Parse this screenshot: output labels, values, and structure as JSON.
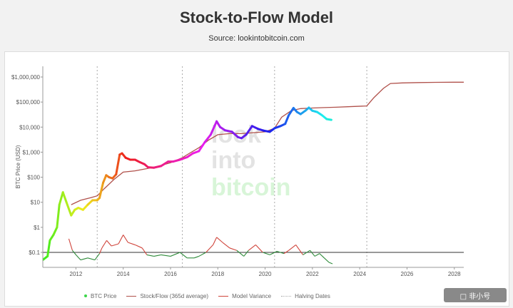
{
  "page": {
    "title": "Stock-to-Flow Model",
    "subtitle": "Source: lookintobitcoin.com"
  },
  "colors": {
    "stock_flow": "#b0514b",
    "variance_red": "#d0453c",
    "variance_green": "#2e8b3a",
    "halving": "#aaaaaa",
    "legend_dot": "#3cd64a",
    "reference_line": "#333333"
  },
  "brand_watermark": {
    "line1": "look",
    "line2": "into",
    "line3": "bitcoin"
  },
  "badge": {
    "text": "□ 非小号"
  },
  "chart_data": {
    "type": "line",
    "title": "Stock-to-Flow Model",
    "ylabel": "BTC Price (USD)",
    "xlabel": "",
    "yscale": "log",
    "ylim": [
      0.05,
      1500000
    ],
    "xlim": [
      2010.6,
      2028.4
    ],
    "y_ticks": [
      {
        "value": 0.1,
        "label": "$0.1"
      },
      {
        "value": 1,
        "label": "$1"
      },
      {
        "value": 10,
        "label": "$10"
      },
      {
        "value": 100,
        "label": "$100"
      },
      {
        "value": 1000,
        "label": "$1,000"
      },
      {
        "value": 10000,
        "label": "$10,000"
      },
      {
        "value": 100000,
        "label": "$100,000"
      },
      {
        "value": 1000000,
        "label": "$1,000,000"
      }
    ],
    "x_ticks": [
      {
        "value": 2012,
        "label": "2012"
      },
      {
        "value": 2014,
        "label": "2014"
      },
      {
        "value": 2016,
        "label": "2016"
      },
      {
        "value": 2018,
        "label": "2018"
      },
      {
        "value": 2020,
        "label": "2020"
      },
      {
        "value": 2022,
        "label": "2022"
      },
      {
        "value": 2024,
        "label": "2024"
      },
      {
        "value": 2026,
        "label": "2026"
      },
      {
        "value": 2028,
        "label": "2028"
      }
    ],
    "halving_dates": [
      2012.9,
      2016.5,
      2020.4,
      2024.3
    ],
    "reference_line_value": 0.1,
    "legend": [
      {
        "label": "BTC Price",
        "style": "dot"
      },
      {
        "label": "Stock/Flow (365d average)",
        "style": "line"
      },
      {
        "label": "Model Variance",
        "style": "line"
      },
      {
        "label": "Halving Dates",
        "style": "dotted"
      }
    ],
    "series": [
      {
        "name": "BTC Price",
        "color_mode": "rainbow",
        "x": [
          2010.6,
          2010.8,
          2010.9,
          2011.05,
          2011.2,
          2011.3,
          2011.45,
          2011.6,
          2011.8,
          2011.95,
          2012.1,
          2012.3,
          2012.5,
          2012.7,
          2012.9,
          2013.0,
          2013.15,
          2013.28,
          2013.4,
          2013.55,
          2013.7,
          2013.85,
          2013.95,
          2014.1,
          2014.3,
          2014.5,
          2014.7,
          2014.9,
          2015.05,
          2015.3,
          2015.6,
          2015.9,
          2016.1,
          2016.4,
          2016.7,
          2016.95,
          2017.2,
          2017.45,
          2017.7,
          2017.95,
          2018.1,
          2018.3,
          2018.6,
          2018.85,
          2019.0,
          2019.2,
          2019.45,
          2019.7,
          2019.95,
          2020.2,
          2020.4,
          2020.65,
          2020.85,
          2021.0,
          2021.2,
          2021.35,
          2021.5,
          2021.7,
          2021.85,
          2022.0,
          2022.2,
          2022.4,
          2022.6,
          2022.8
        ],
        "values": [
          0.05,
          0.07,
          0.3,
          0.5,
          1.0,
          8.0,
          25,
          10,
          3,
          5,
          6,
          5,
          8,
          12,
          12,
          15,
          60,
          120,
          100,
          90,
          130,
          800,
          900,
          600,
          500,
          500,
          400,
          330,
          250,
          240,
          280,
          420,
          420,
          500,
          630,
          900,
          1100,
          2500,
          5000,
          17000,
          10000,
          7500,
          6500,
          4000,
          3600,
          5000,
          11000,
          8500,
          7200,
          6500,
          9000,
          11000,
          13500,
          30000,
          58000,
          40000,
          33000,
          45000,
          60000,
          45000,
          40000,
          30000,
          21000,
          19500
        ]
      },
      {
        "name": "Stock/Flow (365d average)",
        "x": [
          2011.8,
          2012.2,
          2012.6,
          2012.9,
          2013.2,
          2013.6,
          2014.0,
          2014.5,
          2015.0,
          2015.5,
          2016.0,
          2016.5,
          2016.8,
          2017.2,
          2017.6,
          2018.0,
          2018.5,
          2019.0,
          2019.5,
          2020.0,
          2020.4,
          2020.7,
          2021.1,
          2021.5,
          2022.0,
          2022.5,
          2023.0,
          2023.5,
          2024.3,
          2024.6,
          2025.0,
          2025.3,
          2025.8,
          2026.5,
          2027.2,
          2028.0,
          2028.4
        ],
        "values": [
          8,
          12,
          15,
          18,
          35,
          80,
          160,
          180,
          220,
          280,
          380,
          600,
          900,
          1500,
          3000,
          5000,
          5500,
          5500,
          6000,
          6500,
          9000,
          25000,
          45000,
          55000,
          58000,
          60000,
          62000,
          65000,
          70000,
          150000,
          350000,
          550000,
          580000,
          600000,
          610000,
          620000,
          620000
        ]
      },
      {
        "name": "Model Variance",
        "x": [
          2011.7,
          2011.85,
          2012.0,
          2012.2,
          2012.5,
          2012.8,
          2013.0,
          2013.1,
          2013.3,
          2013.5,
          2013.8,
          2014.0,
          2014.2,
          2014.5,
          2014.8,
          2015.0,
          2015.3,
          2015.6,
          2016.0,
          2016.4,
          2016.7,
          2017.0,
          2017.2,
          2017.5,
          2017.8,
          2017.95,
          2018.2,
          2018.5,
          2018.8,
          2019.1,
          2019.3,
          2019.6,
          2019.9,
          2020.2,
          2020.5,
          2020.8,
          2021.0,
          2021.3,
          2021.6,
          2021.9,
          2022.1,
          2022.3,
          2022.5,
          2022.7,
          2022.85
        ],
        "values": [
          0.35,
          0.12,
          0.08,
          0.05,
          0.06,
          0.05,
          0.09,
          0.15,
          0.3,
          0.18,
          0.22,
          0.5,
          0.25,
          0.2,
          0.15,
          0.08,
          0.07,
          0.08,
          0.07,
          0.1,
          0.06,
          0.06,
          0.07,
          0.1,
          0.2,
          0.4,
          0.25,
          0.15,
          0.12,
          0.07,
          0.12,
          0.2,
          0.1,
          0.08,
          0.11,
          0.09,
          0.12,
          0.2,
          0.08,
          0.12,
          0.07,
          0.09,
          0.06,
          0.04,
          0.035
        ]
      }
    ]
  }
}
